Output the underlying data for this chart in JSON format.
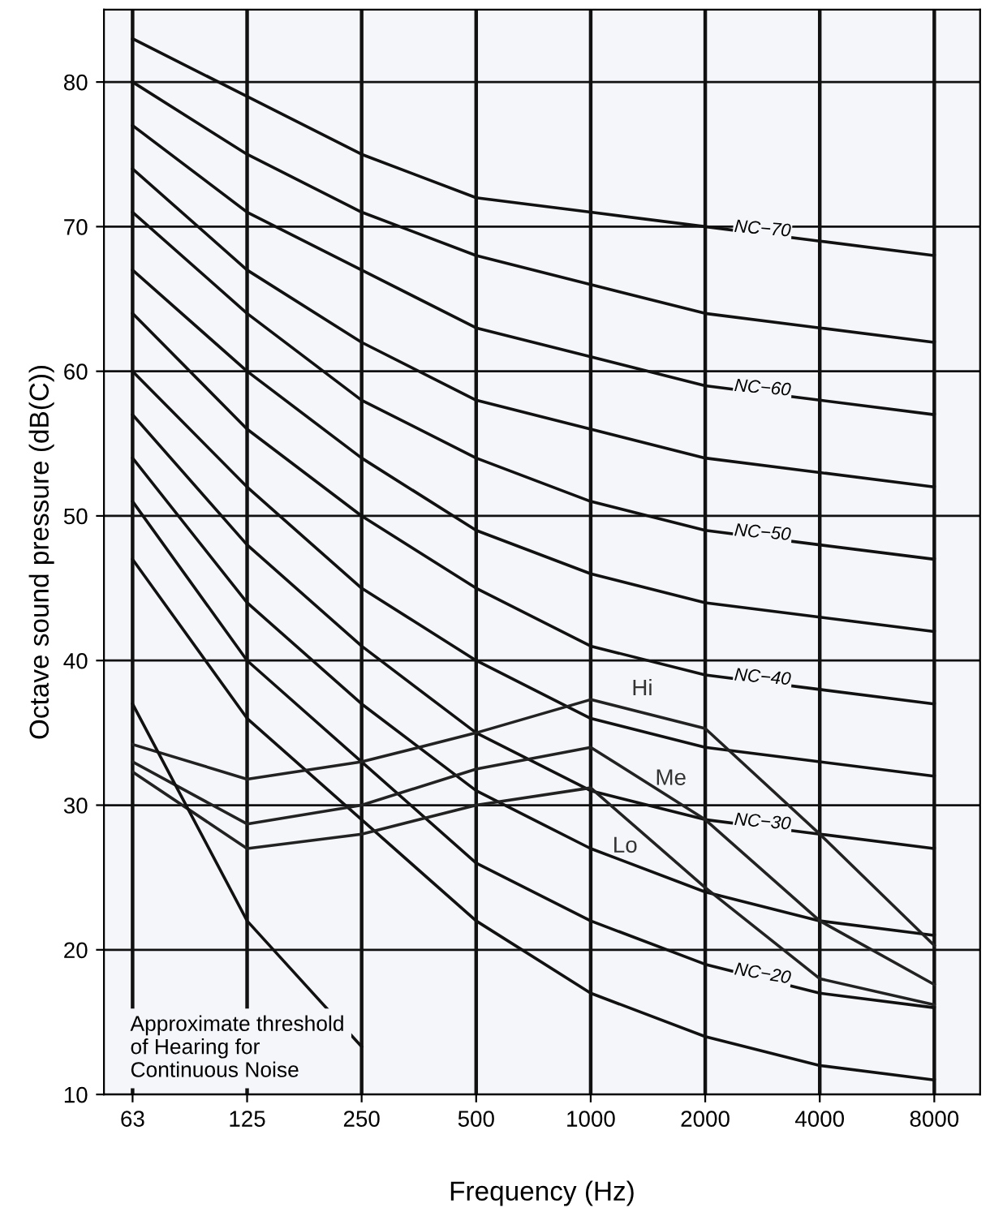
{
  "chart_data": {
    "type": "line",
    "xlabel": "Frequency (Hz)",
    "ylabel": "Octave sound pressure (dB(C))",
    "categories": [
      "63",
      "125",
      "250",
      "500",
      "1000",
      "2000",
      "4000",
      "8000"
    ],
    "ylim": [
      10,
      85
    ],
    "yticks": [
      10,
      20,
      30,
      40,
      50,
      60,
      70,
      80
    ],
    "grid": true,
    "marker": "none",
    "line_style": "solid",
    "series": [
      {
        "name": "NC−70",
        "color": "#111111",
        "values": [
          83,
          79,
          75,
          72,
          71,
          70,
          69,
          68
        ]
      },
      {
        "color": "#111111",
        "values": [
          80,
          75,
          71,
          68,
          66,
          64,
          63,
          62
        ]
      },
      {
        "name": "NC−60",
        "color": "#111111",
        "values": [
          77,
          71,
          67,
          63,
          61,
          59,
          58,
          57
        ]
      },
      {
        "color": "#111111",
        "values": [
          74,
          67,
          62,
          58,
          56,
          54,
          53,
          52
        ]
      },
      {
        "name": "NC−50",
        "color": "#111111",
        "values": [
          71,
          64,
          58,
          54,
          51,
          49,
          48,
          47
        ]
      },
      {
        "color": "#111111",
        "values": [
          67,
          60,
          54,
          49,
          46,
          44,
          43,
          42
        ]
      },
      {
        "name": "NC−40",
        "color": "#111111",
        "values": [
          64,
          56,
          50,
          45,
          41,
          39,
          38,
          37
        ]
      },
      {
        "color": "#111111",
        "values": [
          60,
          52,
          45,
          40,
          36,
          34,
          33,
          32
        ]
      },
      {
        "name": "NC−30",
        "color": "#111111",
        "values": [
          57,
          48,
          41,
          35,
          31,
          29,
          28,
          27
        ]
      },
      {
        "color": "#111111",
        "values": [
          54,
          44,
          37,
          31,
          27,
          24,
          22,
          21
        ]
      },
      {
        "name": "NC−20",
        "color": "#111111",
        "values": [
          51,
          40,
          33,
          26,
          22,
          19,
          17,
          16
        ]
      },
      {
        "color": "#111111",
        "values": [
          47,
          36,
          29,
          22,
          17,
          14,
          12,
          11
        ]
      },
      {
        "name": "Hi",
        "color": "#222222",
        "values": [
          34.2,
          31.8,
          33,
          35,
          37.3,
          35.3,
          28,
          20.3
        ]
      },
      {
        "name": "Me",
        "color": "#222222",
        "values": [
          33,
          28.7,
          30,
          32.5,
          34,
          29,
          22,
          17.6
        ]
      },
      {
        "name": "Lo",
        "color": "#222222",
        "values": [
          32.3,
          27,
          28,
          30,
          31.2,
          24.3,
          18,
          16.2
        ]
      },
      {
        "color": "#111111",
        "values": [
          37,
          22,
          13.3,
          null,
          null,
          null,
          null,
          null
        ]
      }
    ],
    "annotations": [
      "Approximate threshold\nof Hearing for\nContinuous Noise"
    ]
  }
}
